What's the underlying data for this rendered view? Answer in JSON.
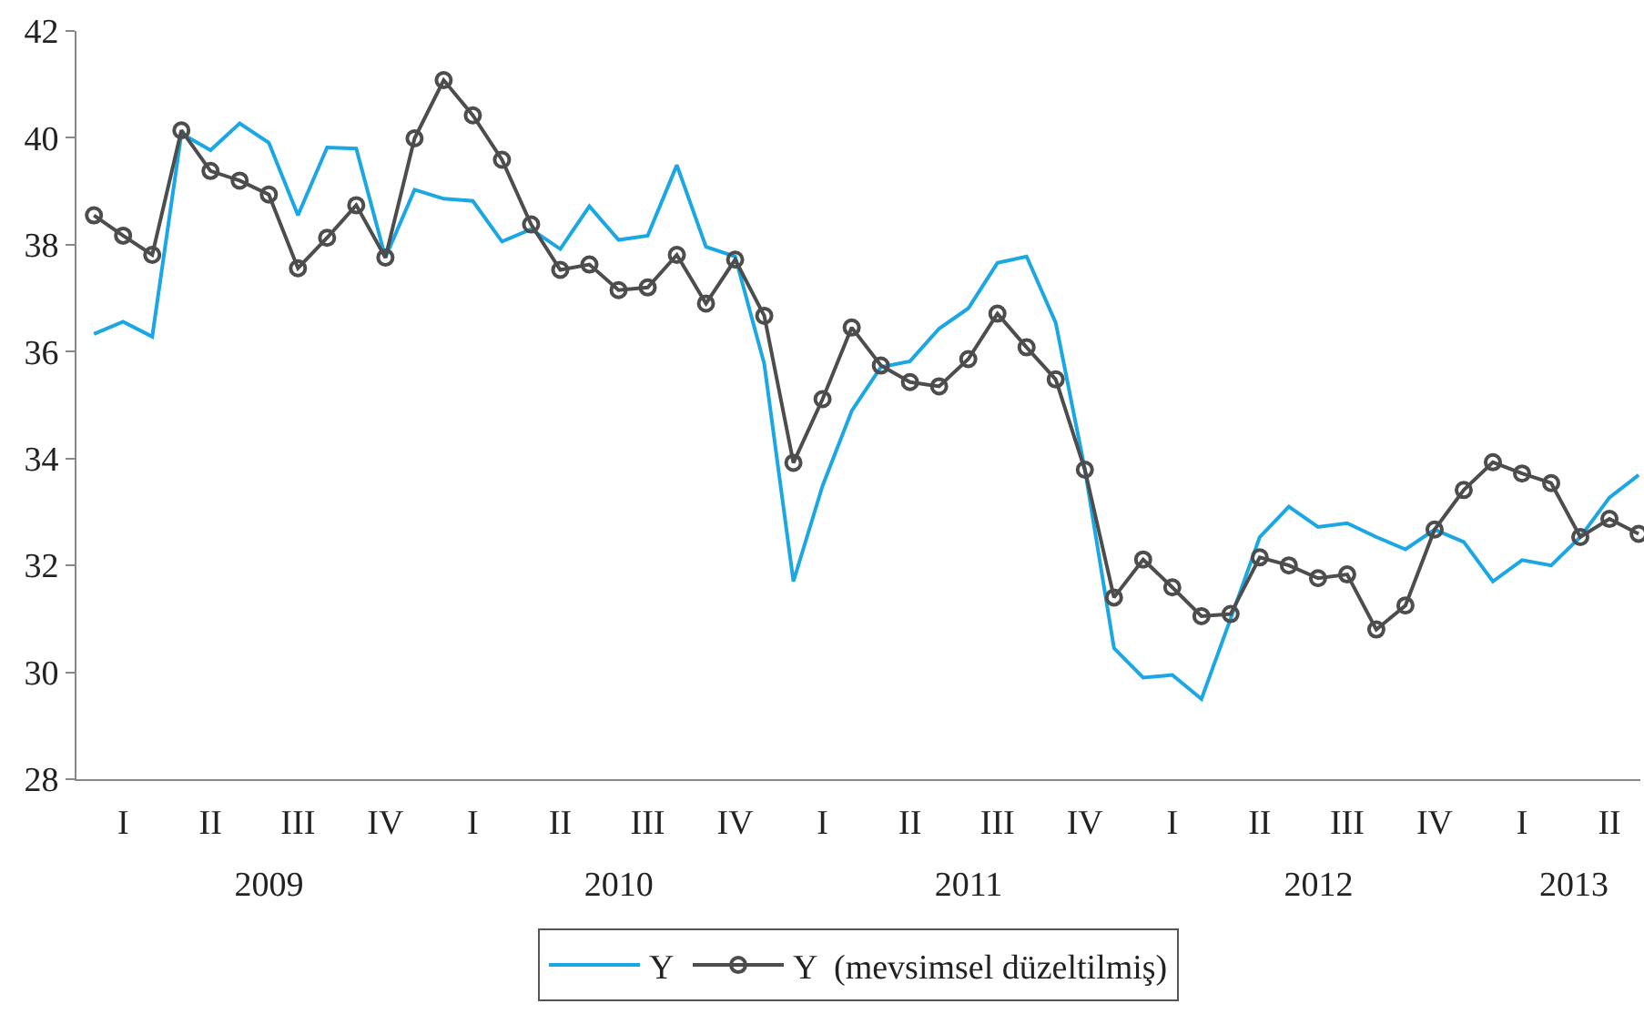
{
  "chart_data": {
    "type": "line",
    "categories": [
      null,
      "I",
      null,
      null,
      "II",
      null,
      null,
      "III",
      null,
      null,
      "IV",
      null,
      null,
      "I",
      null,
      null,
      "II",
      null,
      null,
      "III",
      null,
      null,
      "IV",
      null,
      null,
      "I",
      null,
      null,
      "II",
      null,
      null,
      "III",
      null,
      null,
      "IV",
      null,
      null,
      "I",
      null,
      null,
      "II",
      null,
      null,
      "III",
      null,
      null,
      "IV",
      null,
      null,
      "I",
      null,
      null,
      "II",
      null
    ],
    "series": [
      {
        "name": "Y",
        "color": "#1aa7e3",
        "marker": "none",
        "values": [
          36.33,
          36.56,
          36.28,
          40.08,
          39.77,
          40.27,
          39.91,
          38.55,
          39.82,
          39.8,
          37.76,
          39.03,
          38.86,
          38.82,
          38.06,
          38.29,
          37.92,
          38.72,
          38.09,
          38.17,
          39.49,
          37.96,
          37.78,
          35.77,
          31.7,
          33.49,
          34.89,
          35.71,
          35.82,
          36.43,
          36.81,
          37.66,
          37.78,
          36.54,
          33.8,
          30.45,
          29.9,
          29.95,
          29.5,
          31.0,
          32.53,
          33.1,
          32.72,
          32.79,
          32.53,
          32.3,
          32.67,
          32.44,
          31.7,
          32.1,
          32.0,
          32.53,
          33.27,
          33.69
        ]
      },
      {
        "name": "Y  (mevsimsel düzeltilmiş)",
        "color": "#4d4d4d",
        "marker": "circle",
        "values": [
          38.55,
          38.17,
          37.81,
          40.14,
          39.38,
          39.2,
          38.94,
          37.56,
          38.13,
          38.74,
          37.76,
          39.99,
          41.08,
          40.42,
          39.59,
          38.38,
          37.53,
          37.63,
          37.15,
          37.2,
          37.81,
          36.9,
          37.72,
          36.67,
          33.92,
          35.11,
          36.45,
          35.74,
          35.43,
          35.35,
          35.86,
          36.71,
          36.08,
          35.48,
          33.79,
          31.4,
          32.11,
          31.59,
          31.05,
          31.09,
          32.15,
          32.0,
          31.76,
          31.83,
          30.8,
          31.25,
          32.67,
          33.41,
          33.93,
          33.72,
          33.54,
          32.53,
          32.87,
          32.59
        ]
      }
    ],
    "x2lim": [
      2008.95,
      2013.42
    ],
    "x2ticks": [
      {
        "value": 2009.5,
        "label": "2009"
      },
      {
        "value": 2010.5,
        "label": "2010"
      },
      {
        "value": 2011.5,
        "label": "2011"
      },
      {
        "value": 2012.5,
        "label": "2012"
      },
      {
        "value": 2013.23,
        "label": "2013"
      }
    ],
    "ylim": [
      28,
      42
    ],
    "yticks": [
      28,
      30,
      32,
      34,
      36,
      38,
      40,
      42
    ],
    "grid": false,
    "legend": "bottom",
    "line_style": "solid"
  }
}
